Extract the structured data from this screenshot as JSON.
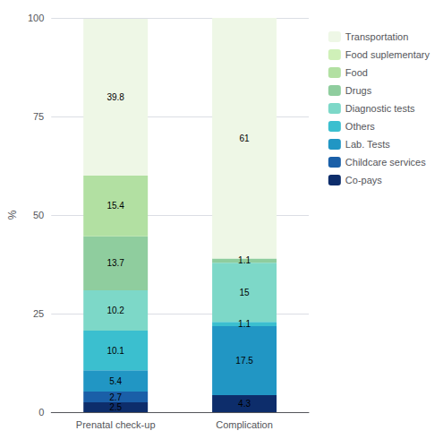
{
  "chart_data": {
    "type": "bar",
    "stacked": true,
    "data_labels": true,
    "ylabel": "%",
    "categories": [
      "Prenatal check-up",
      "Complication"
    ],
    "series": [
      {
        "name": "Co-pays",
        "values": [
          2.5,
          4.3
        ],
        "color": "#0d2d6b"
      },
      {
        "name": "Childcare services",
        "values": [
          2.7,
          0.0
        ],
        "color": "#1a5fa8"
      },
      {
        "name": "Lab. Tests",
        "values": [
          5.4,
          17.5
        ],
        "color": "#2196c4"
      },
      {
        "name": "Others",
        "values": [
          10.1,
          1.1
        ],
        "color": "#3bbfcf"
      },
      {
        "name": "Diagnostic tests",
        "values": [
          10.2,
          15.0
        ],
        "color": "#7dd8c8"
      },
      {
        "name": "Drugs",
        "values": [
          13.7,
          1.1
        ],
        "color": "#8fcd9e"
      },
      {
        "name": "Food",
        "values": [
          15.4,
          0.0
        ],
        "color": "#b2e0a2"
      },
      {
        "name": "Food suplementary",
        "values": [
          0.0,
          0.0
        ],
        "color": "#cff0b8"
      },
      {
        "name": "Transportation",
        "values": [
          39.8,
          61.0
        ],
        "color": "#eef7e6"
      }
    ],
    "ylim": [
      0,
      100
    ],
    "yticks": [
      0,
      25,
      50,
      75,
      100
    ],
    "grid": true,
    "legend": "right"
  }
}
